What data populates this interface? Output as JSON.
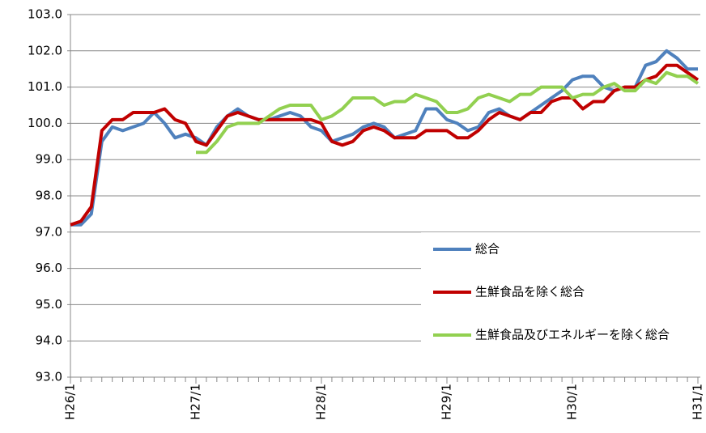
{
  "chart_data": {
    "type": "line",
    "categories": [
      "H26/1",
      null,
      null,
      null,
      null,
      null,
      null,
      null,
      null,
      null,
      null,
      null,
      "H27/1",
      null,
      null,
      null,
      null,
      null,
      null,
      null,
      null,
      null,
      null,
      null,
      "H28/1",
      null,
      null,
      null,
      null,
      null,
      null,
      null,
      null,
      null,
      null,
      null,
      "H29/1",
      null,
      null,
      null,
      null,
      null,
      null,
      null,
      null,
      null,
      null,
      null,
      "H30/1",
      null,
      null,
      null,
      null,
      null,
      null,
      null,
      null,
      null,
      null,
      null,
      "H31/1"
    ],
    "series": [
      {
        "name": "総合",
        "color": "#4f81bd",
        "values": [
          97.2,
          97.2,
          97.5,
          99.5,
          99.9,
          99.8,
          99.9,
          100.0,
          100.3,
          100.0,
          99.6,
          99.7,
          99.6,
          99.4,
          99.9,
          100.2,
          100.4,
          100.2,
          100.1,
          100.1,
          100.2,
          100.3,
          100.2,
          99.9,
          99.8,
          99.5,
          99.6,
          99.7,
          99.9,
          100.0,
          99.9,
          99.6,
          99.7,
          99.8,
          100.4,
          100.4,
          100.1,
          100.0,
          99.8,
          99.9,
          100.3,
          100.4,
          100.2,
          100.1,
          100.3,
          100.5,
          100.7,
          100.9,
          101.2,
          101.3,
          101.3,
          101.0,
          100.9,
          101.0,
          101.0,
          101.6,
          101.7,
          102.0,
          101.8,
          101.5,
          101.5
        ]
      },
      {
        "name": "生鮮食品を除く総合",
        "color": "#c00000",
        "values": [
          97.2,
          97.3,
          97.7,
          99.8,
          100.1,
          100.1,
          100.3,
          100.3,
          100.3,
          100.4,
          100.1,
          100.0,
          99.5,
          99.4,
          99.8,
          100.2,
          100.3,
          100.2,
          100.1,
          100.1,
          100.1,
          100.1,
          100.1,
          100.1,
          100.0,
          99.5,
          99.4,
          99.5,
          99.8,
          99.9,
          99.8,
          99.6,
          99.6,
          99.6,
          99.8,
          99.8,
          99.8,
          99.6,
          99.6,
          99.8,
          100.1,
          100.3,
          100.2,
          100.1,
          100.3,
          100.3,
          100.6,
          100.7,
          100.7,
          100.4,
          100.6,
          100.6,
          100.9,
          101.0,
          101.0,
          101.2,
          101.3,
          101.6,
          101.6,
          101.4,
          101.2
        ]
      },
      {
        "name": "生鮮食品及びエネルギーを除く総合",
        "color": "#92d050",
        "values": [
          null,
          null,
          null,
          null,
          null,
          null,
          null,
          null,
          null,
          null,
          null,
          null,
          99.2,
          99.2,
          99.5,
          99.9,
          100.0,
          100.0,
          100.0,
          100.2,
          100.4,
          100.5,
          100.5,
          100.5,
          100.1,
          100.2,
          100.4,
          100.7,
          100.7,
          100.7,
          100.5,
          100.6,
          100.6,
          100.8,
          100.7,
          100.6,
          100.3,
          100.3,
          100.4,
          100.7,
          100.8,
          100.7,
          100.6,
          100.8,
          100.8,
          101.0,
          101.0,
          101.0,
          100.7,
          100.8,
          100.8,
          101.0,
          101.1,
          100.9,
          100.9,
          101.2,
          101.1,
          101.4,
          101.3,
          101.3,
          101.1
        ]
      }
    ],
    "ylim": [
      93,
      103
    ],
    "yticks": [
      {
        "value": 93,
        "label": "93.0"
      },
      {
        "value": 94,
        "label": "94.0"
      },
      {
        "value": 95,
        "label": "95.0"
      },
      {
        "value": 96,
        "label": "96.0"
      },
      {
        "value": 97,
        "label": "97.0"
      },
      {
        "value": 98,
        "label": "98.0"
      },
      {
        "value": 99,
        "label": "99.0"
      },
      {
        "value": 100,
        "label": "100.0"
      },
      {
        "value": 101,
        "label": "101.0"
      },
      {
        "value": 102,
        "label": "102.0"
      },
      {
        "value": 103,
        "label": "103.0"
      }
    ],
    "grid": true
  }
}
